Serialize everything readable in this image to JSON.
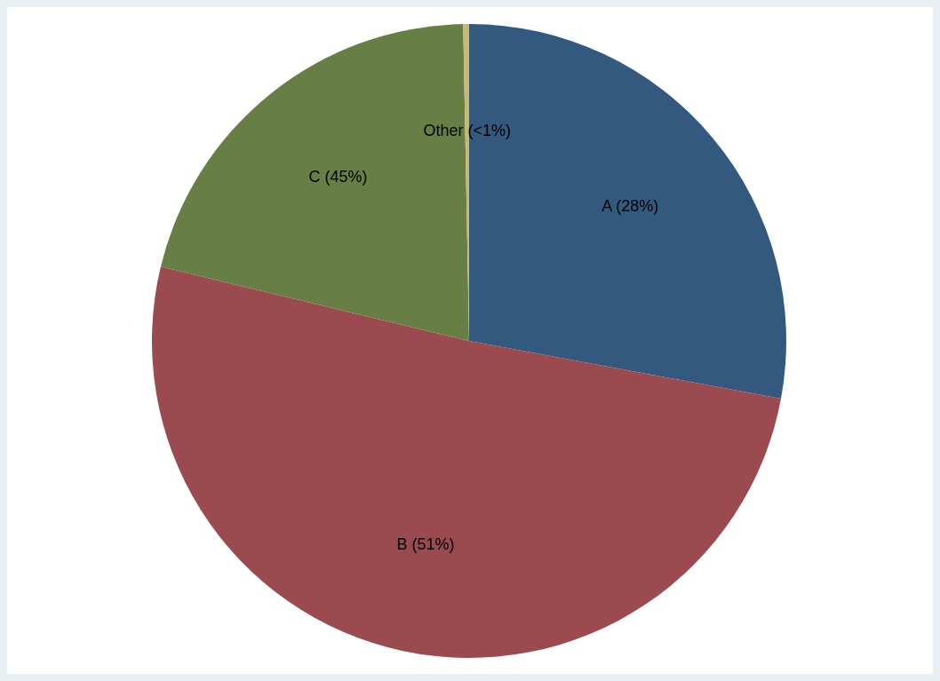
{
  "chart_data": {
    "type": "pie",
    "categories": [
      "A (28%)",
      "B (51%)",
      "C (45%)",
      "Other (<1%)"
    ],
    "values": [
      28,
      51,
      21,
      0.3
    ],
    "colors": [
      "#335a7e",
      "#9b4a4f",
      "#677f45",
      "#c9b772"
    ]
  }
}
